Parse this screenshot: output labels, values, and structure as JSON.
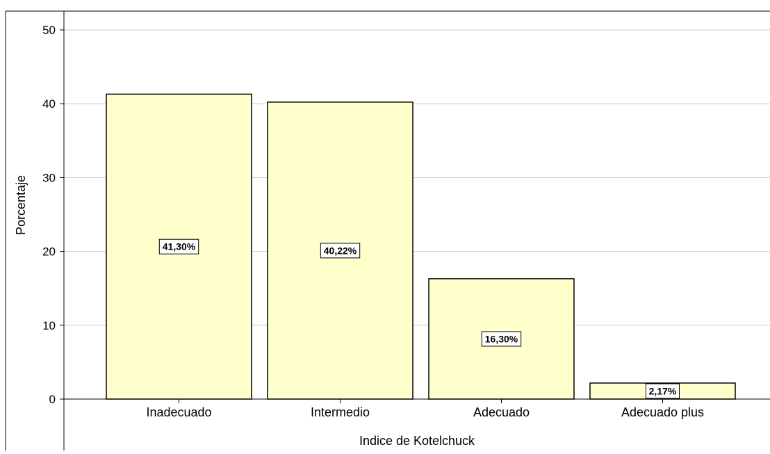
{
  "chart_data": {
    "type": "bar",
    "title": "",
    "xlabel": "Indice de Kotelchuck",
    "ylabel": "Porcentaje",
    "categories": [
      "Inadecuado",
      "Intermedio",
      "Adecuado",
      "Adecuado plus"
    ],
    "values": [
      41.3,
      40.22,
      16.3,
      2.17
    ],
    "data_labels": [
      "41,30%",
      "40,22%",
      "16,30%",
      "2,17%"
    ],
    "ylim": [
      0,
      50
    ],
    "yticks": [
      0,
      10,
      20,
      30,
      40,
      50
    ],
    "grid": true,
    "bar_color": "#ffffcc",
    "bar_edge_color": "#000000",
    "grid_color": "#cccccc",
    "legend": false
  }
}
